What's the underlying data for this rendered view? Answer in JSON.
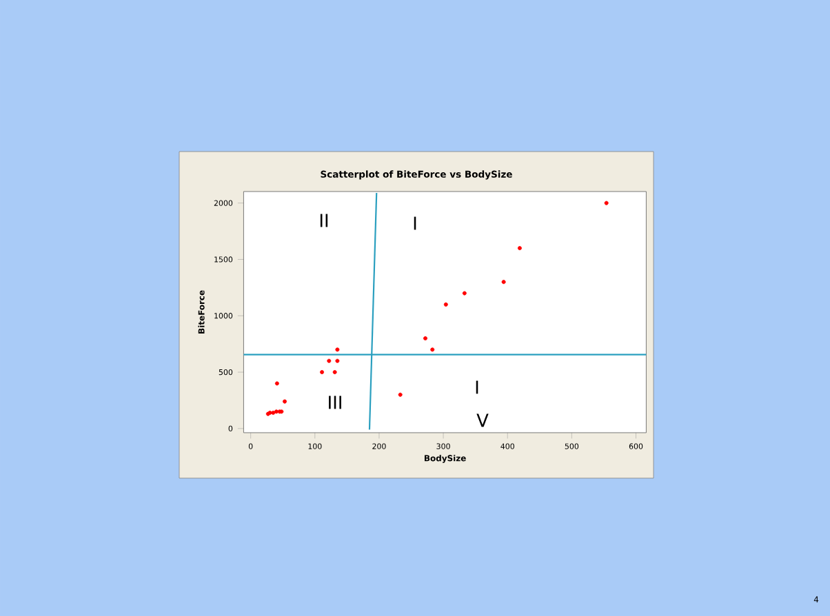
{
  "chart_data": {
    "type": "scatter",
    "title": "Scatterplot of BiteForce vs BodySize",
    "xlabel": "BodySize",
    "ylabel": "BiteForce",
    "xlim": [
      -11,
      616
    ],
    "ylim": [
      -37,
      2102
    ],
    "xticks": [
      0,
      100,
      200,
      300,
      400,
      500,
      600
    ],
    "yticks": [
      0,
      500,
      1000,
      1500,
      2000
    ],
    "grid": false,
    "series": [
      {
        "color": "#ff0000",
        "marker": "circle",
        "x": [
          27,
          30,
          35,
          40,
          45,
          48,
          41,
          53,
          111,
          122,
          131,
          135,
          135,
          233,
          272,
          283,
          304,
          333,
          394,
          419,
          554
        ],
        "values": [
          130,
          140,
          140,
          150,
          150,
          150,
          400,
          240,
          500,
          600,
          500,
          600,
          700,
          300,
          800,
          700,
          1100,
          1200,
          1300,
          1600,
          2000
        ]
      },
      {
        "type": "line",
        "color": "#2a9fbf",
        "marker": "none",
        "x": [
          185,
          196
        ],
        "values": [
          -10,
          2090
        ]
      }
    ],
    "ref_lines": [
      {
        "axis": "y",
        "value": 656,
        "color": "#2a9fbf"
      }
    ],
    "annotations": [
      "II",
      "I",
      "III",
      "I",
      "V",
      "4"
    ]
  }
}
